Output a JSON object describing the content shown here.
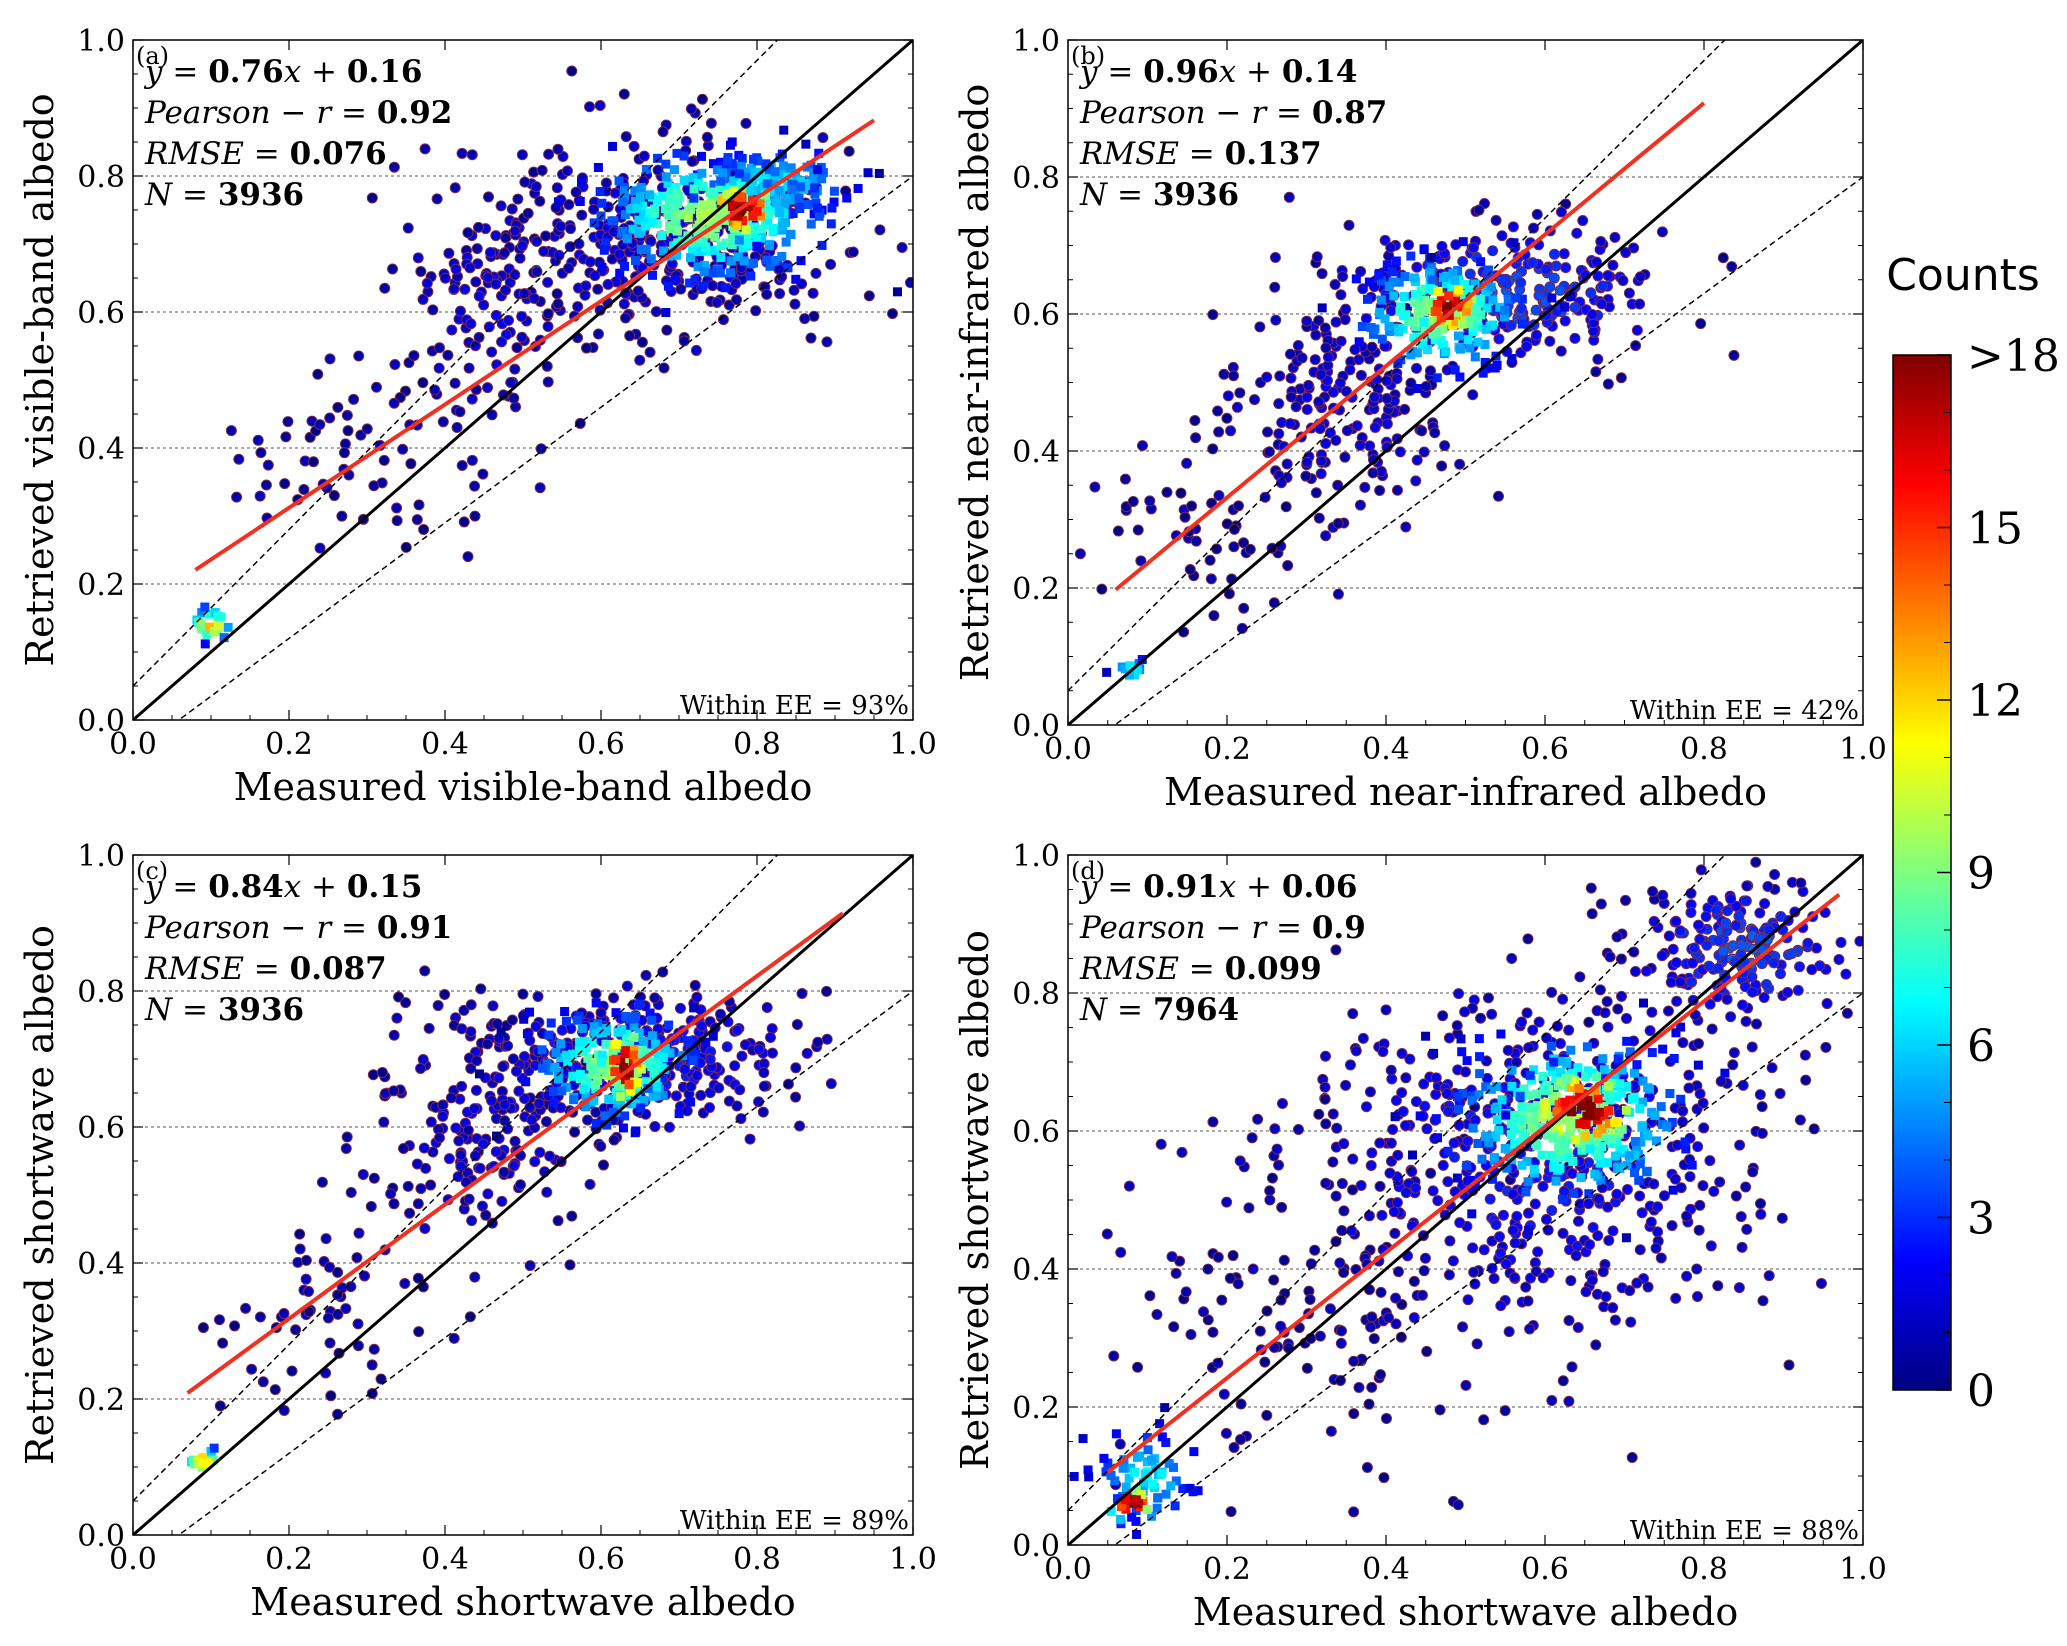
{
  "chart_data": [
    {
      "type": "scatter",
      "panel_label": "(a)",
      "xlabel": "Measured visible-band albedo",
      "ylabel": "Retrieved visible-band albedo",
      "xlim": [
        0.0,
        1.0
      ],
      "ylim": [
        0.0,
        1.0
      ],
      "ticks": [
        "0.0",
        "0.2",
        "0.4",
        "0.6",
        "0.8",
        "1.0"
      ],
      "grid": "horizontal dashed",
      "stats": {
        "equation": {
          "prefix": "y = ",
          "slope": "0.76",
          "mid": "x + ",
          "intercept": "0.16"
        },
        "pearson": {
          "prefix": "Pearson − r = ",
          "value": "0.92"
        },
        "rmse": {
          "prefix": "RMSE = ",
          "value": "0.076"
        },
        "n": {
          "prefix": "N = ",
          "value": "3936"
        }
      },
      "within_ee": "Within EE = 93%",
      "fit": {
        "slope": 0.76,
        "intercept": 0.16,
        "x_range": [
          0.08,
          0.95
        ]
      },
      "ee_lines": {
        "one_to_one": true,
        "offset_pos": 0.05,
        "slope_pos": 1.15,
        "offset_neg": -0.05,
        "slope_neg": 0.85
      },
      "density_clusters": [
        {
          "x": 0.78,
          "y": 0.75,
          "sx": 0.025,
          "sy": 0.02,
          "count": 40,
          "level": 18
        },
        {
          "x": 0.74,
          "y": 0.74,
          "sx": 0.07,
          "sy": 0.045,
          "count": 300,
          "level": 9
        },
        {
          "x": 0.82,
          "y": 0.79,
          "sx": 0.05,
          "sy": 0.025,
          "count": 120,
          "level": 6
        },
        {
          "x": 0.68,
          "y": 0.71,
          "sx": 0.12,
          "sy": 0.07,
          "count": 400,
          "level": 1
        },
        {
          "x": 0.45,
          "y": 0.6,
          "sx": 0.05,
          "sy": 0.08,
          "count": 120,
          "level": 1
        },
        {
          "x": 0.3,
          "y": 0.4,
          "sx": 0.08,
          "sy": 0.08,
          "count": 70,
          "level": 0
        },
        {
          "x": 0.1,
          "y": 0.14,
          "sx": 0.012,
          "sy": 0.012,
          "count": 25,
          "level": 12
        }
      ]
    },
    {
      "type": "scatter",
      "panel_label": "(b)",
      "xlabel": "Measured near-infrared albedo",
      "ylabel": "Retrieved near-infrared albedo",
      "xlim": [
        0.0,
        1.0
      ],
      "ylim": [
        0.0,
        1.0
      ],
      "ticks": [
        "0.0",
        "0.2",
        "0.4",
        "0.6",
        "0.8",
        "1.0"
      ],
      "grid": "horizontal dashed",
      "stats": {
        "equation": {
          "prefix": "y = ",
          "slope": "0.96",
          "mid": "x + ",
          "intercept": "0.14"
        },
        "pearson": {
          "prefix": "Pearson − r = ",
          "value": "0.87"
        },
        "rmse": {
          "prefix": "RMSE = ",
          "value": "0.137"
        },
        "n": {
          "prefix": "N = ",
          "value": "3936"
        }
      },
      "within_ee": "Within EE = 42%",
      "fit": {
        "slope": 0.96,
        "intercept": 0.14,
        "x_range": [
          0.06,
          0.8
        ]
      },
      "ee_lines": {
        "one_to_one": true,
        "offset_pos": 0.05,
        "slope_pos": 1.15,
        "offset_neg": -0.05,
        "slope_neg": 0.85
      },
      "density_clusters": [
        {
          "x": 0.48,
          "y": 0.61,
          "sx": 0.02,
          "sy": 0.02,
          "count": 35,
          "level": 18
        },
        {
          "x": 0.47,
          "y": 0.6,
          "sx": 0.05,
          "sy": 0.04,
          "count": 200,
          "level": 9
        },
        {
          "x": 0.55,
          "y": 0.63,
          "sx": 0.1,
          "sy": 0.05,
          "count": 300,
          "level": 3
        },
        {
          "x": 0.35,
          "y": 0.47,
          "sx": 0.08,
          "sy": 0.08,
          "count": 200,
          "level": 1
        },
        {
          "x": 0.18,
          "y": 0.28,
          "sx": 0.07,
          "sy": 0.07,
          "count": 60,
          "level": 0
        },
        {
          "x": 0.08,
          "y": 0.08,
          "sx": 0.01,
          "sy": 0.01,
          "count": 12,
          "level": 6
        }
      ]
    },
    {
      "type": "scatter",
      "panel_label": "(c)",
      "xlabel": "Measured shortwave albedo",
      "ylabel": "Retrieved shortwave albedo",
      "xlim": [
        0.0,
        1.0
      ],
      "ylim": [
        0.0,
        1.0
      ],
      "ticks": [
        "0.0",
        "0.2",
        "0.4",
        "0.6",
        "0.8",
        "1.0"
      ],
      "grid": "horizontal dashed",
      "stats": {
        "equation": {
          "prefix": "y = ",
          "slope": "0.84",
          "mid": "x + ",
          "intercept": "0.15"
        },
        "pearson": {
          "prefix": "Pearson − r = ",
          "value": "0.91"
        },
        "rmse": {
          "prefix": "RMSE = ",
          "value": "0.087"
        },
        "n": {
          "prefix": "N = ",
          "value": "3936"
        }
      },
      "within_ee": "Within EE = 89%",
      "fit": {
        "slope": 0.84,
        "intercept": 0.15,
        "x_range": [
          0.07,
          0.91
        ]
      },
      "ee_lines": {
        "one_to_one": true,
        "offset_pos": 0.05,
        "slope_pos": 1.15,
        "offset_neg": -0.05,
        "slope_neg": 0.85
      },
      "density_clusters": [
        {
          "x": 0.63,
          "y": 0.69,
          "sx": 0.015,
          "sy": 0.03,
          "count": 35,
          "level": 18
        },
        {
          "x": 0.62,
          "y": 0.69,
          "sx": 0.05,
          "sy": 0.04,
          "count": 200,
          "level": 9
        },
        {
          "x": 0.65,
          "y": 0.7,
          "sx": 0.1,
          "sy": 0.05,
          "count": 350,
          "level": 2
        },
        {
          "x": 0.45,
          "y": 0.6,
          "sx": 0.07,
          "sy": 0.08,
          "count": 180,
          "level": 1
        },
        {
          "x": 0.25,
          "y": 0.33,
          "sx": 0.08,
          "sy": 0.08,
          "count": 60,
          "level": 0
        },
        {
          "x": 0.09,
          "y": 0.11,
          "sx": 0.01,
          "sy": 0.01,
          "count": 15,
          "level": 12
        }
      ]
    },
    {
      "type": "scatter",
      "panel_label": "(d)",
      "xlabel": "Measured shortwave albedo",
      "ylabel": "Retrieved shortwave albedo",
      "xlim": [
        0.0,
        1.0
      ],
      "ylim": [
        0.0,
        1.0
      ],
      "ticks": [
        "0.0",
        "0.2",
        "0.4",
        "0.6",
        "0.8",
        "1.0"
      ],
      "grid": "horizontal dashed",
      "stats": {
        "equation": {
          "prefix": "y = ",
          "slope": "0.91",
          "mid": "x + ",
          "intercept": "0.06"
        },
        "pearson": {
          "prefix": "Pearson − r = ",
          "value": "0.9"
        },
        "rmse": {
          "prefix": "RMSE = ",
          "value": "0.099"
        },
        "n": {
          "prefix": "N = ",
          "value": "7964"
        }
      },
      "within_ee": "Within EE = 88%",
      "fit": {
        "slope": 0.91,
        "intercept": 0.06,
        "x_range": [
          0.05,
          0.97
        ]
      },
      "ee_lines": {
        "one_to_one": true,
        "offset_pos": 0.05,
        "slope_pos": 1.15,
        "offset_neg": -0.05,
        "slope_neg": 0.85
      },
      "density_clusters": [
        {
          "x": 0.65,
          "y": 0.63,
          "sx": 0.035,
          "sy": 0.03,
          "count": 80,
          "level": 18
        },
        {
          "x": 0.63,
          "y": 0.62,
          "sx": 0.07,
          "sy": 0.06,
          "count": 300,
          "level": 9
        },
        {
          "x": 0.58,
          "y": 0.56,
          "sx": 0.14,
          "sy": 0.12,
          "count": 550,
          "level": 2
        },
        {
          "x": 0.85,
          "y": 0.86,
          "sx": 0.07,
          "sy": 0.05,
          "count": 220,
          "level": 3
        },
        {
          "x": 0.3,
          "y": 0.35,
          "sx": 0.14,
          "sy": 0.14,
          "count": 140,
          "level": 0
        },
        {
          "x": 0.1,
          "y": 0.1,
          "sx": 0.03,
          "sy": 0.03,
          "count": 60,
          "level": 6
        },
        {
          "x": 0.08,
          "y": 0.06,
          "sx": 0.015,
          "sy": 0.012,
          "count": 25,
          "level": 18
        }
      ]
    }
  ],
  "colorbar": {
    "title": "Counts",
    "tick_labels": [
      "0",
      "3",
      "6",
      "9",
      "12",
      "15",
      ">18"
    ],
    "tick_values": [
      0,
      3,
      6,
      9,
      12,
      15,
      18
    ],
    "range": [
      0,
      18
    ],
    "colormap": "jet",
    "colors": [
      "#00007f",
      "#0000ff",
      "#007fff",
      "#00ffff",
      "#7fff7f",
      "#ffff00",
      "#ff7f00",
      "#ff0000",
      "#7f0000"
    ]
  }
}
